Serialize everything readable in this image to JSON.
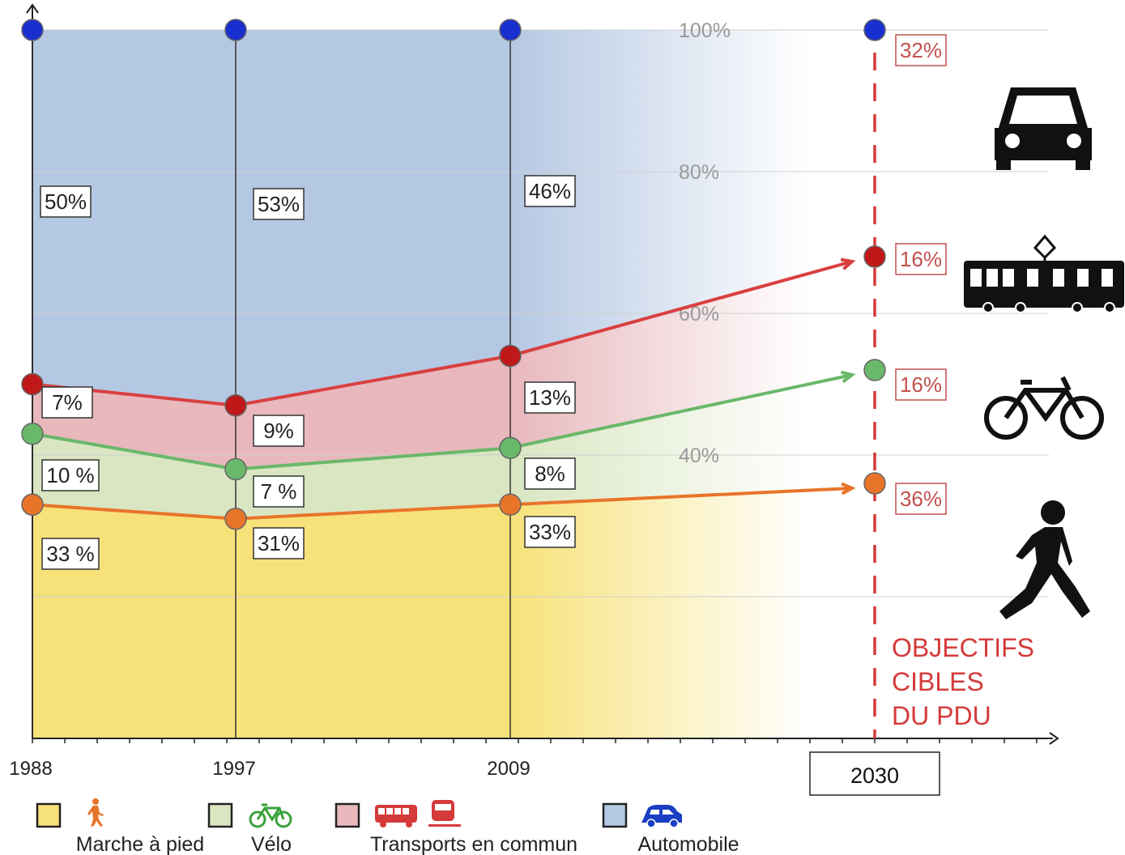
{
  "chart_data": {
    "type": "area",
    "x": [
      1988,
      1997,
      2009,
      2030
    ],
    "x_tick_labels": [
      "1988",
      "1997",
      "2009",
      "2030"
    ],
    "ylim": [
      0,
      100
    ],
    "y_tick_labels": [
      "40%",
      "60%",
      "80%",
      "100%"
    ],
    "y_ticks": [
      40,
      60,
      80,
      100
    ],
    "stack_boundaries": {
      "marche": [
        33,
        31,
        33,
        36
      ],
      "velo": [
        43,
        38,
        41,
        52
      ],
      "tc": [
        50,
        47,
        54,
        68
      ],
      "auto": [
        100,
        100,
        100,
        100
      ]
    },
    "series": [
      {
        "name": "Marche à pied",
        "values": [
          33,
          31,
          33,
          36
        ],
        "labels": [
          "33 %",
          "31%",
          "33%",
          "36%"
        ],
        "fill": "#f7e27a",
        "line": "#e8742a"
      },
      {
        "name": "Vélo",
        "values": [
          10,
          7,
          8,
          16
        ],
        "labels": [
          "10 %",
          "7 %",
          "8%",
          "16%"
        ],
        "fill": "#d9e6c1",
        "line": "#6ab86a"
      },
      {
        "name": "Transports en commun",
        "values": [
          7,
          9,
          13,
          16
        ],
        "labels": [
          "7%",
          "9%",
          "13%",
          "16%"
        ],
        "fill": "#e8b8bd",
        "line": "#d94040"
      },
      {
        "name": "Automobile",
        "values": [
          50,
          53,
          46,
          32
        ],
        "labels": [
          "50%",
          "53%",
          "46%",
          "32%"
        ],
        "fill": "#b5c8e3",
        "line": "#1a3fc4"
      }
    ],
    "annotation": [
      "OBJECTIFS",
      "CIBLES",
      "DU PDU"
    ],
    "colors": {
      "marker_auto": "#1a2fd0",
      "marker_tc": "#c01818",
      "marker_velo": "#6ab86a",
      "marker_marche": "#e8742a",
      "target_red": "#d43a3a",
      "axis": "#222222"
    }
  },
  "side_icons": [
    "car-icon",
    "tram-icon",
    "bicycle-icon",
    "walking-person-icon"
  ],
  "legend": [
    {
      "label": "Marche à pied",
      "icons": [
        "walking-icon"
      ],
      "swatch": "#f7e27a",
      "icon_color": "#e8742a"
    },
    {
      "label": "Vélo",
      "icons": [
        "bicycle-icon"
      ],
      "swatch": "#d9e6c1",
      "icon_color": "#3aa23a"
    },
    {
      "label": "Transports en commun",
      "icons": [
        "bus-icon",
        "train-icon"
      ],
      "swatch": "#e8b8bd",
      "icon_color": "#d43a3a"
    },
    {
      "label": "Automobile",
      "icons": [
        "car-icon"
      ],
      "swatch": "#b5c8e3",
      "icon_color": "#1a3fc4"
    }
  ]
}
